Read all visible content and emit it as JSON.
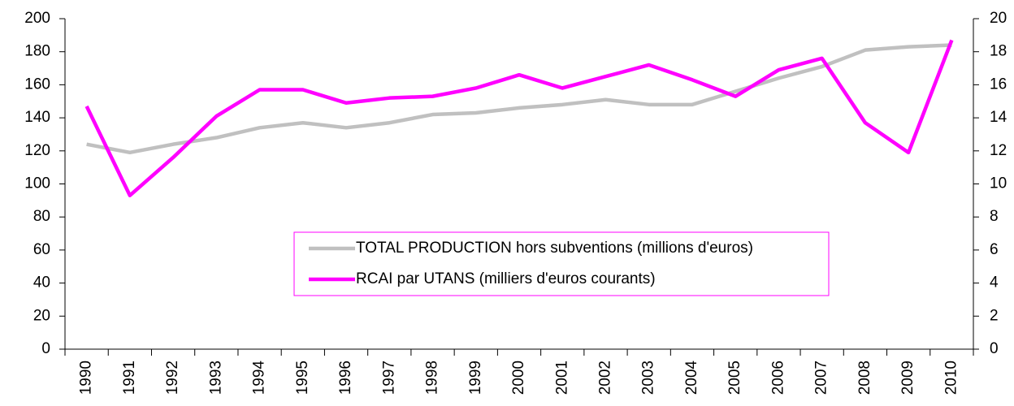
{
  "chart_data": {
    "type": "line",
    "categories": [
      "1990",
      "1991",
      "1992",
      "1993",
      "1994",
      "1995",
      "1996",
      "1997",
      "1998",
      "1999",
      "2000",
      "2001",
      "2002",
      "2003",
      "2004",
      "2005",
      "2006",
      "2007",
      "2008",
      "2009",
      "2010"
    ],
    "series": [
      {
        "name": "TOTAL PRODUCTION hors subventions (millions d'euros)",
        "color": "#c0c0c0",
        "axis": "y",
        "values": [
          124,
          119,
          124,
          128,
          134,
          137,
          134,
          137,
          142,
          143,
          146,
          148,
          151,
          148,
          148,
          156,
          164,
          171,
          181,
          183,
          184
        ]
      },
      {
        "name": "RCAI par UTANS (milliers d'euros courants)",
        "color": "#ff00ff",
        "axis": "y2",
        "values": [
          14.7,
          9.3,
          11.6,
          14.1,
          15.7,
          15.7,
          14.9,
          15.2,
          15.3,
          15.8,
          16.6,
          15.8,
          16.5,
          17.2,
          16.3,
          15.3,
          16.9,
          17.6,
          13.7,
          11.9,
          18.7
        ]
      }
    ],
    "ylim": [
      0,
      200
    ],
    "yticks": [
      0,
      20,
      40,
      60,
      80,
      100,
      120,
      140,
      160,
      180,
      200
    ],
    "y2lim": [
      0,
      20
    ],
    "y2ticks": [
      0,
      2,
      4,
      6,
      8,
      10,
      12,
      14,
      16,
      18,
      20
    ]
  }
}
